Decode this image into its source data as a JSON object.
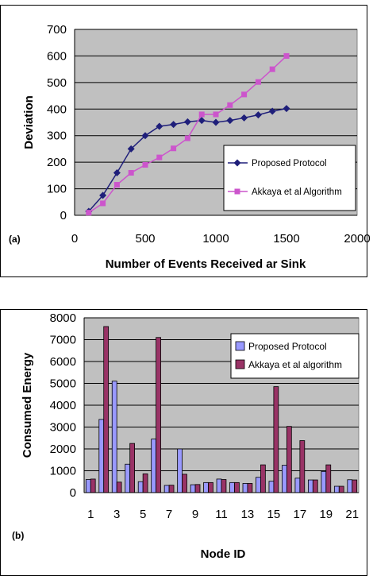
{
  "chart_data": [
    {
      "type": "line",
      "panel_label": "(a)",
      "title": "",
      "xlabel": "Number of Events Received ar Sink",
      "ylabel": "Deviation",
      "xlim": [
        0,
        2000
      ],
      "ylim": [
        0,
        700
      ],
      "xticks": [
        0,
        500,
        1000,
        1500,
        2000
      ],
      "yticks": [
        0,
        100,
        200,
        300,
        400,
        500,
        600,
        700
      ],
      "grid": true,
      "legend_position": "bottom-right",
      "plot_bg": "#c0c0c0",
      "series": [
        {
          "name": "Proposed Protocol",
          "color": "#1f1f7a",
          "marker": "diamond",
          "x": [
            100,
            200,
            300,
            400,
            500,
            600,
            700,
            800,
            900,
            1000,
            1100,
            1200,
            1300,
            1400,
            1500
          ],
          "y": [
            15,
            75,
            160,
            250,
            300,
            335,
            342,
            352,
            357,
            350,
            357,
            367,
            378,
            392,
            402
          ]
        },
        {
          "name": "Akkaya et al Algorithm",
          "color": "#cc55cc",
          "marker": "square",
          "x": [
            100,
            200,
            300,
            400,
            500,
            600,
            700,
            800,
            900,
            1000,
            1100,
            1200,
            1300,
            1400,
            1500
          ],
          "y": [
            10,
            45,
            115,
            160,
            190,
            218,
            252,
            290,
            380,
            380,
            415,
            455,
            502,
            550,
            600
          ]
        }
      ]
    },
    {
      "type": "bar",
      "panel_label": "(b)",
      "title": "",
      "xlabel": "Node ID",
      "ylabel": "Consumed Energy",
      "ylim": [
        0,
        8000
      ],
      "yticks": [
        0,
        1000,
        2000,
        3000,
        4000,
        5000,
        6000,
        7000,
        8000
      ],
      "xtick_labels": [
        "1",
        "3",
        "5",
        "7",
        "9",
        "11",
        "13",
        "15",
        "17",
        "19",
        "21"
      ],
      "grid": true,
      "legend_position": "top-right",
      "plot_bg": "#c0c0c0",
      "categories": [
        1,
        2,
        3,
        4,
        5,
        6,
        7,
        8,
        9,
        10,
        11,
        12,
        13,
        14,
        15,
        16,
        17,
        18,
        19,
        20,
        21
      ],
      "series": [
        {
          "name": "Proposed Protocol",
          "color": "#9999ff",
          "values": [
            600,
            3350,
            5100,
            1300,
            500,
            2450,
            330,
            2000,
            360,
            460,
            620,
            460,
            420,
            700,
            520,
            1250,
            660,
            580,
            970,
            290,
            590
          ]
        },
        {
          "name": "Akkaya et al algorithm",
          "color": "#993366",
          "values": [
            620,
            7600,
            480,
            2250,
            860,
            7100,
            340,
            840,
            370,
            460,
            600,
            460,
            420,
            1270,
            4850,
            3030,
            2380,
            580,
            1270,
            290,
            580
          ]
        }
      ]
    }
  ]
}
